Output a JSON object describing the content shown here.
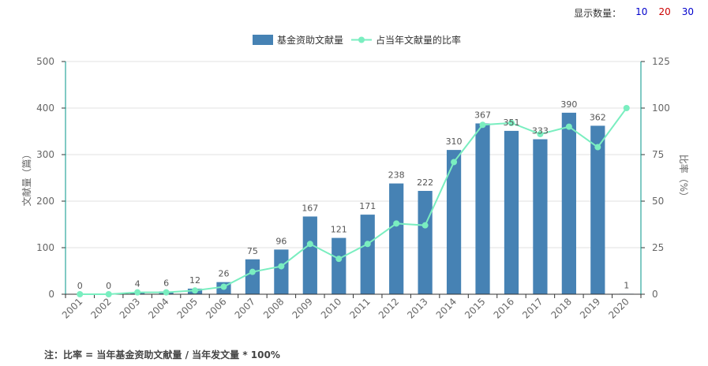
{
  "display_count": {
    "label": "显示数量：",
    "options": [
      {
        "text": "10",
        "color": "#0000cc"
      },
      {
        "text": "20",
        "color": "#cc0000"
      },
      {
        "text": "30",
        "color": "#0000cc"
      }
    ]
  },
  "note": "注：比率 = 当年基金资助文献量 / 当年发文量 * 100%",
  "chart_data": {
    "type": "bar",
    "categories": [
      "2001",
      "2002",
      "2003",
      "2004",
      "2005",
      "2006",
      "2007",
      "2008",
      "2009",
      "2010",
      "2011",
      "2012",
      "2013",
      "2014",
      "2015",
      "2016",
      "2017",
      "2018",
      "2019",
      "2020"
    ],
    "series": [
      {
        "name": "基金资助文献量",
        "type": "bar",
        "color": "#4682b4",
        "values": [
          0,
          0,
          4,
          6,
          12,
          26,
          75,
          96,
          167,
          121,
          171,
          238,
          222,
          310,
          367,
          351,
          333,
          390,
          362,
          1
        ]
      },
      {
        "name": "占当年文献量的比率",
        "type": "line",
        "color": "#7aeec0",
        "values": [
          0,
          0,
          1,
          1,
          2,
          4,
          12,
          15,
          27,
          19,
          27,
          38,
          37,
          71,
          91,
          92,
          86,
          90,
          79,
          100
        ]
      }
    ],
    "ylabel_left": "文献量（篇）",
    "ylabel_right": "比率（%）",
    "ylim_left": [
      0,
      500
    ],
    "ylim_right": [
      0,
      125
    ],
    "yticks_left": [
      0,
      100,
      200,
      300,
      400,
      500
    ],
    "yticks_right": [
      0,
      25,
      50,
      75,
      100,
      125
    ],
    "grid": true,
    "legend_position": "top-center"
  }
}
